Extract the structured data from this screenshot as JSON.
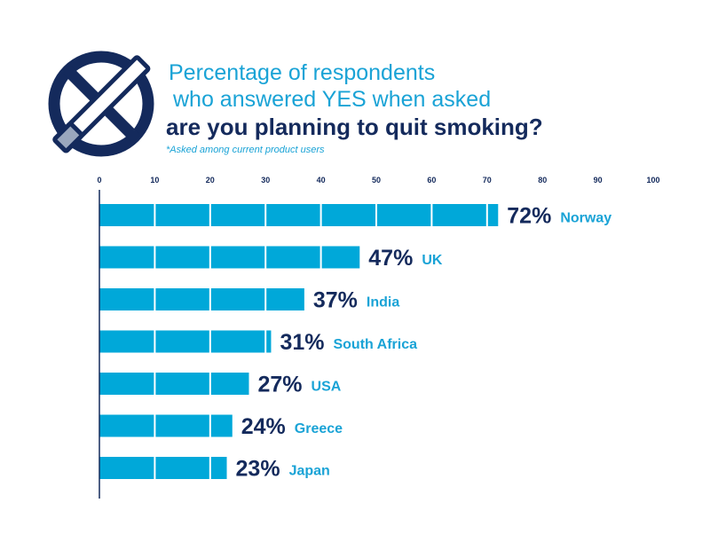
{
  "title": {
    "line1": "Percentage of respondents",
    "line2": "who answered YES when asked",
    "line3": "are you planning to quit smoking?",
    "footnote": "*Asked among current product users"
  },
  "icon": "no-smoking-icon",
  "colors": {
    "bar": "#00a8d9",
    "dark": "#142a5c",
    "accent": "#1aa3d6"
  },
  "chart_data": {
    "type": "bar",
    "orientation": "horizontal",
    "categories": [
      "Norway",
      "UK",
      "India",
      "South Africa",
      "USA",
      "Greece",
      "Japan"
    ],
    "values": [
      72,
      47,
      37,
      31,
      27,
      24,
      23
    ],
    "value_labels": [
      "72%",
      "47%",
      "37%",
      "31%",
      "27%",
      "24%",
      "23%"
    ],
    "xlim": [
      0,
      100
    ],
    "xticks": [
      0,
      10,
      20,
      30,
      40,
      50,
      60,
      70,
      80,
      90,
      100
    ],
    "axis_position": "top",
    "grid": true
  }
}
